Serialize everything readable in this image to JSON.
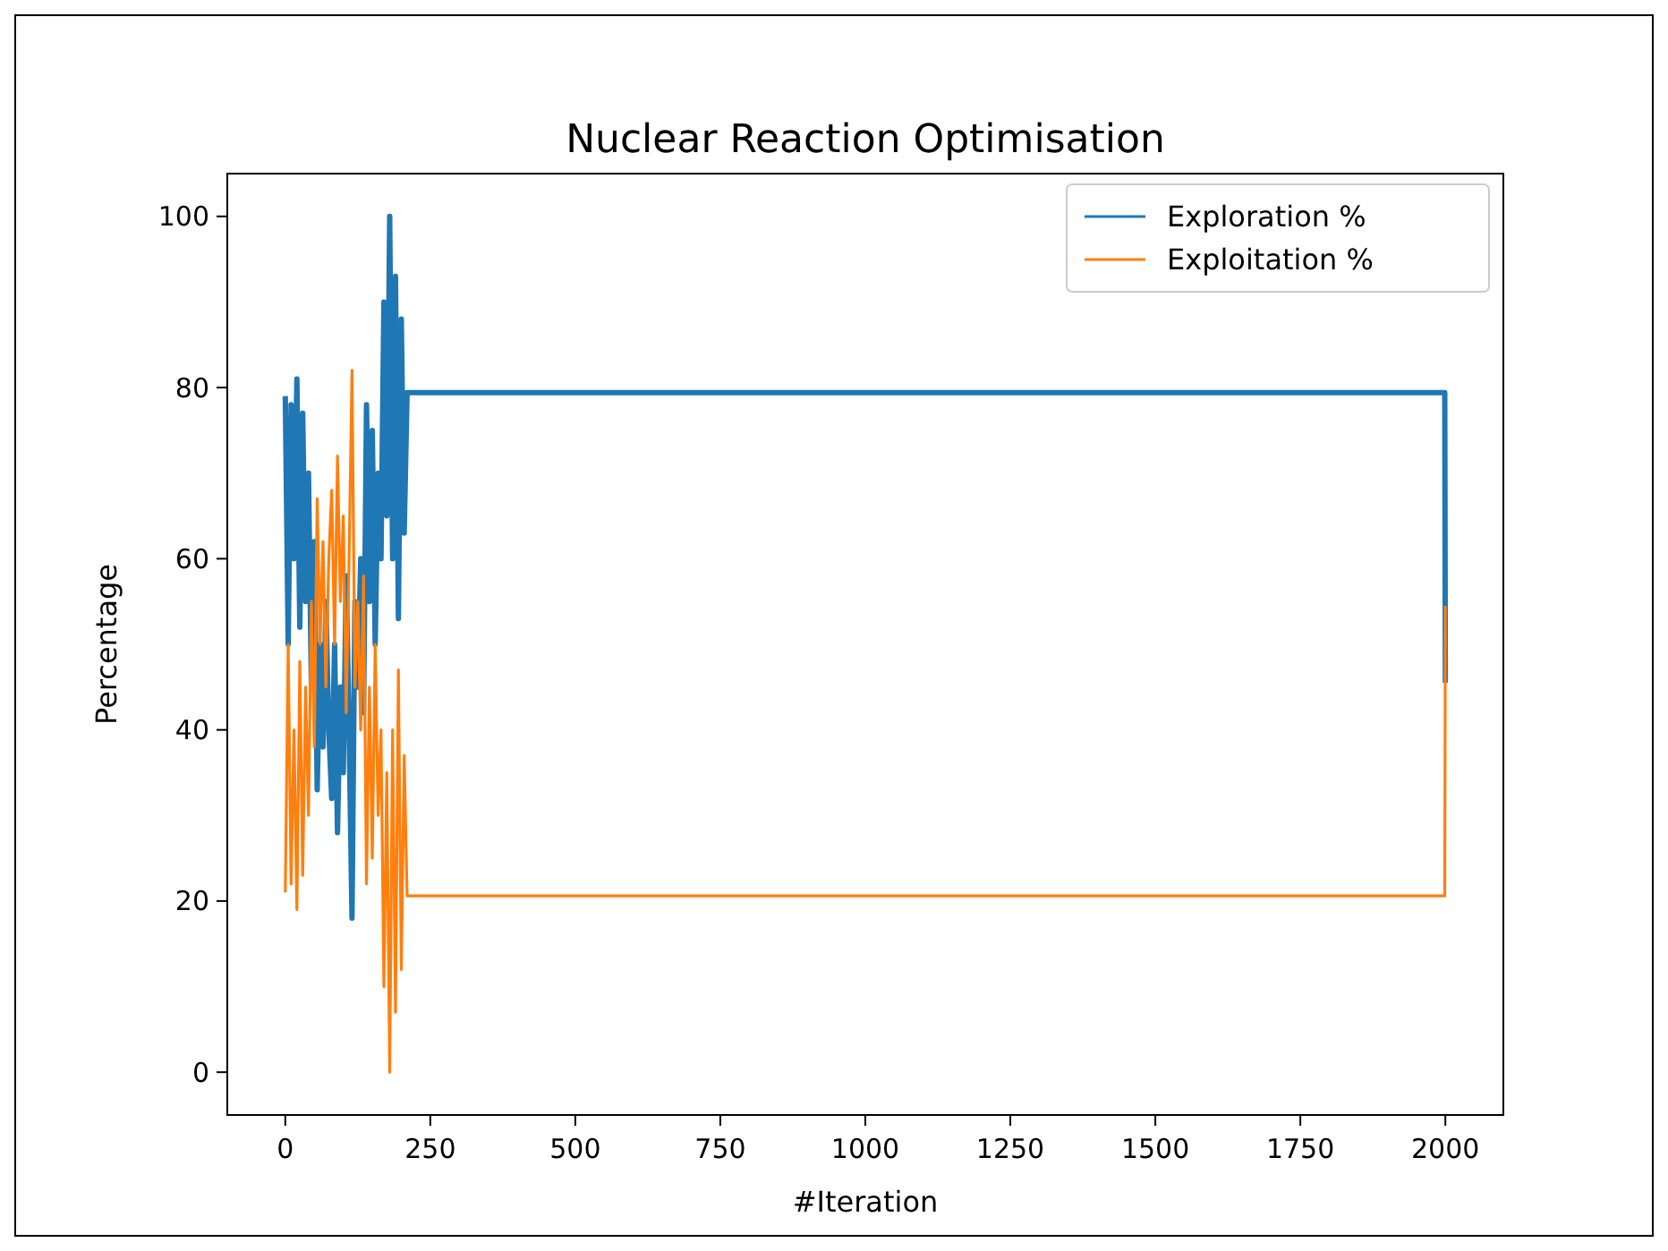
{
  "chart_data": {
    "type": "line",
    "title": "Nuclear Reaction Optimisation",
    "xlabel": "#Iteration",
    "ylabel": "Percentage",
    "x": [
      0,
      5,
      10,
      15,
      20,
      25,
      30,
      35,
      40,
      45,
      50,
      55,
      60,
      65,
      70,
      75,
      80,
      85,
      90,
      95,
      100,
      105,
      110,
      115,
      120,
      125,
      130,
      135,
      140,
      145,
      150,
      155,
      160,
      165,
      170,
      175,
      180,
      185,
      190,
      195,
      200,
      205,
      210,
      1999,
      2000
    ],
    "series": [
      {
        "name": "Exploration %",
        "color": "#1f77b4",
        "values": [
          79,
          50,
          78,
          60,
          81,
          52,
          77,
          55,
          70,
          45,
          62,
          33,
          50,
          38,
          55,
          40,
          32,
          50,
          28,
          45,
          35,
          58,
          40,
          18,
          55,
          45,
          60,
          42,
          78,
          55,
          75,
          50,
          70,
          60,
          90,
          65,
          100,
          60,
          93,
          53,
          88,
          63,
          79.4,
          79.4,
          45.5
        ]
      },
      {
        "name": "Exploitation %",
        "color": "#ff7f0e",
        "values": [
          21,
          50,
          22,
          40,
          19,
          48,
          23,
          45,
          30,
          55,
          38,
          67,
          50,
          62,
          45,
          60,
          68,
          50,
          72,
          55,
          65,
          42,
          60,
          82,
          45,
          55,
          40,
          58,
          22,
          45,
          25,
          50,
          30,
          40,
          10,
          35,
          0,
          40,
          7,
          47,
          12,
          37,
          20.6,
          20.6,
          54.5
        ]
      }
    ],
    "xlim": [
      -100,
      2100
    ],
    "ylim": [
      -5,
      105
    ],
    "xticks": [
      0,
      250,
      500,
      750,
      1000,
      1250,
      1500,
      1750,
      2000
    ],
    "yticks": [
      0,
      20,
      40,
      60,
      80,
      100
    ],
    "grid": false,
    "legend": "top right"
  }
}
